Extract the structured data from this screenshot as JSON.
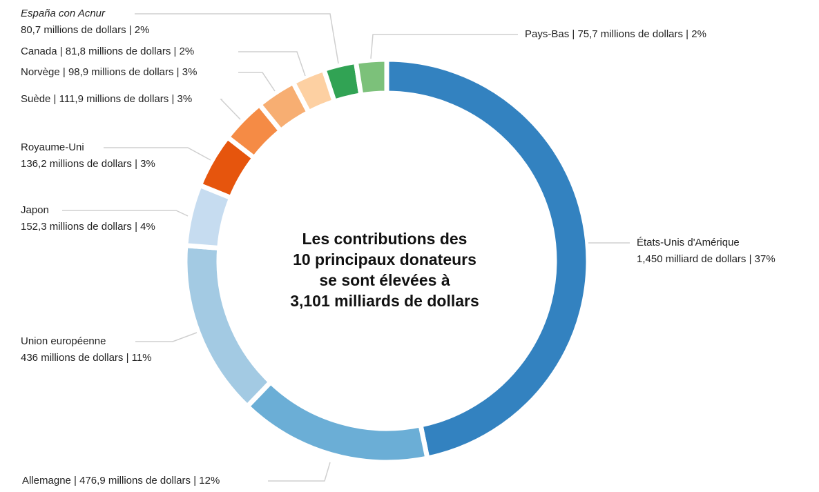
{
  "chart_data": {
    "type": "donut",
    "title": "Les contributions des 10 principaux donateurs se sont élevées à 3,101 milliards de dollars",
    "categories": [
      "États-Unis d'Amérique",
      "Allemagne",
      "Union européenne",
      "Japon",
      "Royaume-Uni",
      "Suède",
      "Norvège",
      "Canada",
      "España con Acnur",
      "Pays-Bas"
    ],
    "values": [
      1450,
      476.9,
      436,
      152.3,
      136.2,
      111.9,
      98.9,
      81.8,
      80.7,
      75.7
    ],
    "value_labels": [
      "1,450 milliard de dollars | 37%",
      "476,9 millions de dollars | 12%",
      "436 millions de dollars | 11%",
      "152,3 millions de dollars | 4%",
      "136,2 millions de dollars | 3%",
      "111,9 millions de dollars | 3%",
      "98,9 millions de dollars | 3%",
      "81,8 millions de dollars | 2%",
      "80,7 millions de dollars | 2%",
      "75,7 millions de dollars | 2%"
    ],
    "separator": " | ",
    "colors": [
      "#3382c0",
      "#6baed6",
      "#a3cae3",
      "#c6dcf0",
      "#e6550d",
      "#f58b45",
      "#f7ae72",
      "#fdd0a2",
      "#31a354",
      "#7cc17a"
    ]
  }
}
